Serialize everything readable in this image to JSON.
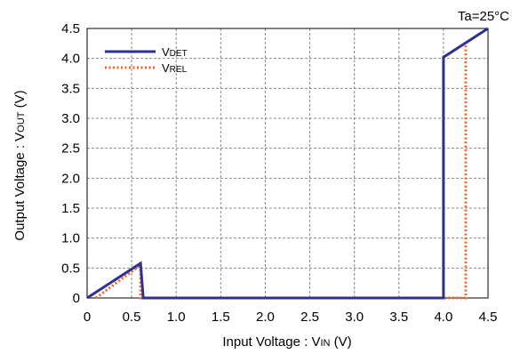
{
  "chart_data": {
    "type": "line",
    "annotation": "Ta=25°C",
    "xlabel": {
      "prefix": "Input Voltage : V",
      "sub": "IN",
      "suffix": " (V)"
    },
    "ylabel": {
      "prefix": "Output Voltage : V",
      "sub": "OUT",
      "suffix": " (V)"
    },
    "xlim": [
      0,
      4.5
    ],
    "ylim": [
      0,
      4.5
    ],
    "x_ticks": [
      "0",
      "0.5",
      "1.0",
      "1.5",
      "2.0",
      "2.5",
      "3.0",
      "3.5",
      "4.0",
      "4.5"
    ],
    "y_ticks": [
      "0",
      "0.5",
      "1.0",
      "1.5",
      "2.0",
      "2.5",
      "3.0",
      "3.5",
      "4.0",
      "4.5"
    ],
    "grid": true,
    "legend_position": "top-left",
    "series": [
      {
        "name": "VDET",
        "name_main": "V",
        "name_sub": "DET",
        "color": "#2e3192",
        "style": "solid",
        "points": [
          [
            0,
            0
          ],
          [
            0.6,
            0.58
          ],
          [
            0.63,
            0
          ],
          [
            4.0,
            0
          ],
          [
            4.0,
            4.02
          ],
          [
            4.5,
            4.5
          ]
        ]
      },
      {
        "name": "VREL",
        "name_main": "V",
        "name_sub": "REL",
        "color": "#f26522",
        "style": "dotted",
        "points": [
          [
            0.1,
            0
          ],
          [
            0.6,
            0.55
          ],
          [
            0.6,
            0
          ],
          [
            4.25,
            0
          ],
          [
            4.25,
            4.22
          ]
        ]
      }
    ]
  }
}
